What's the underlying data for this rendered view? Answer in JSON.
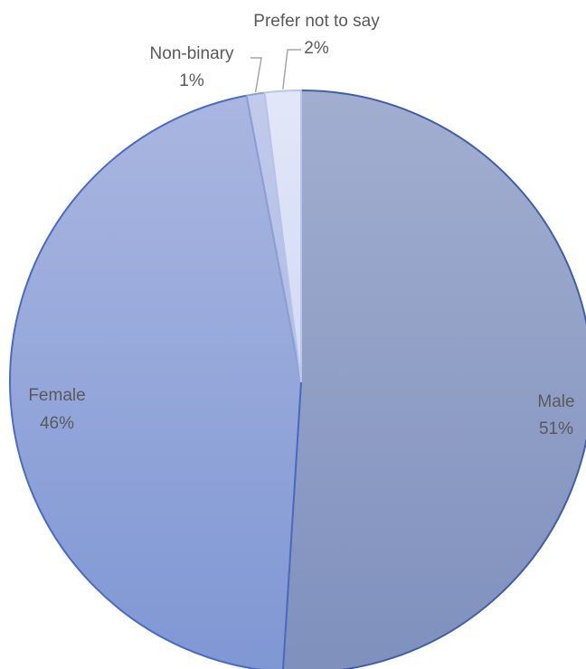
{
  "chart_data": {
    "type": "pie",
    "title": "",
    "slices": [
      {
        "label": "Male",
        "value": 51,
        "percent_text": "51%",
        "color": "#8c9bc2"
      },
      {
        "label": "Female",
        "value": 46,
        "percent_text": "46%",
        "color": "#91a3d6"
      },
      {
        "label": "Non-binary",
        "value": 1,
        "percent_text": "1%",
        "color": "#b7c3e6"
      },
      {
        "label": "Prefer not to say",
        "value": 2,
        "percent_text": "2%",
        "color": "#d9dff4"
      }
    ],
    "start_angle_deg": 0,
    "direction": "clockwise",
    "legend": "none",
    "data_labels": "category and percentage"
  }
}
